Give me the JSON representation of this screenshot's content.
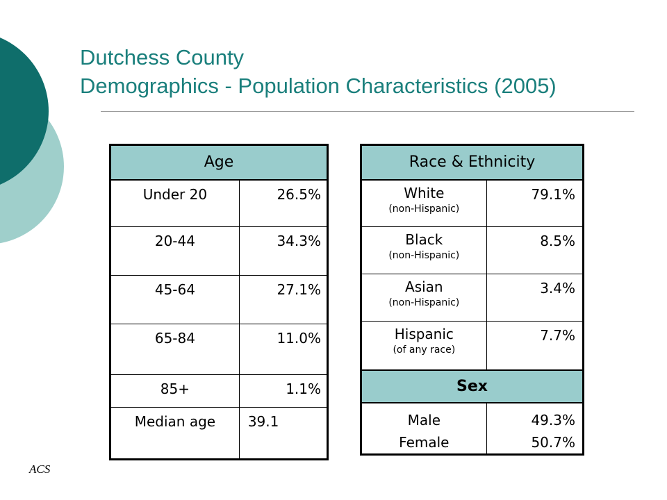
{
  "slide": {
    "title_line1": "Dutchess County",
    "title_line2": "Demographics - Population Characteristics (2005)",
    "source": "ACS"
  },
  "colors": {
    "accent": "#1a7f7c",
    "header_fill": "#99cccc",
    "deco_dark": "#0f6e6b",
    "deco_light": "#9fcfcb"
  },
  "age_table": {
    "header": "Age",
    "rows": [
      {
        "label": "Under 20",
        "value": "26.5%"
      },
      {
        "label": "20-44",
        "value": "34.3%"
      },
      {
        "label": "45-64",
        "value": "27.1%"
      },
      {
        "label": "65-84",
        "value": "11.0%"
      },
      {
        "label": "85+",
        "value": "1.1%"
      },
      {
        "label": "Median age",
        "value": "39.1"
      }
    ]
  },
  "race_table": {
    "header": "Race & Ethnicity",
    "rows": [
      {
        "label": "White",
        "sublabel": "(non-Hispanic)",
        "value": "79.1%"
      },
      {
        "label": "Black",
        "sublabel": "(non-Hispanic)",
        "value": "8.5%"
      },
      {
        "label": "Asian",
        "sublabel": "(non-Hispanic)",
        "value": "3.4%"
      },
      {
        "label": "Hispanic",
        "sublabel": "(of any race)",
        "value": "7.7%"
      }
    ],
    "sex_header": "Sex",
    "sex": {
      "male_label": "Male",
      "male_value": "49.3%",
      "female_label": "Female",
      "female_value": "50.7%"
    }
  }
}
